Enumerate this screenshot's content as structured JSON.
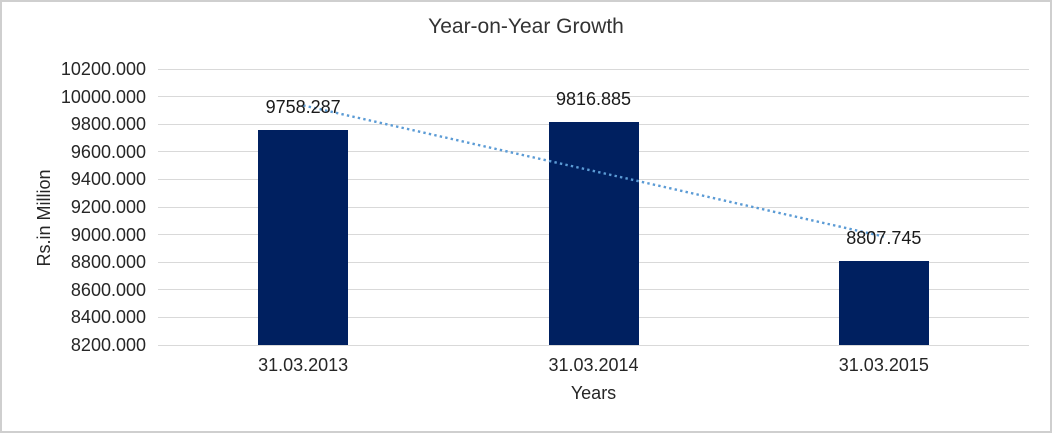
{
  "chart_data": {
    "type": "bar",
    "title": "Year-on-Year Growth",
    "categories": [
      "31.03.2013",
      "31.03.2014",
      "31.03.2015"
    ],
    "values": [
      9758.287,
      9816.885,
      8807.745
    ],
    "data_labels": [
      "9758.287",
      "9816.885",
      "8807.745"
    ],
    "xlabel": "Years",
    "ylabel": "Rs.in Million",
    "ylim": [
      8200,
      10200
    ],
    "ytick_step": 200,
    "ytick_labels": [
      "8200.000",
      "8400.000",
      "8600.000",
      "8800.000",
      "9000.000",
      "9200.000",
      "9400.000",
      "9600.000",
      "9800.000",
      "10000.000",
      "10200.000"
    ],
    "grid": true,
    "legend": "none",
    "trendline": {
      "type": "linear",
      "style": "dotted"
    },
    "colors": {
      "bar": "#002060",
      "trendline": "#5B9BD5",
      "gridline": "#D9D9D9",
      "title_text": "#333333",
      "axis_text": "#262626",
      "background": "#FFFFFF",
      "border": "#CFCFCF"
    }
  }
}
